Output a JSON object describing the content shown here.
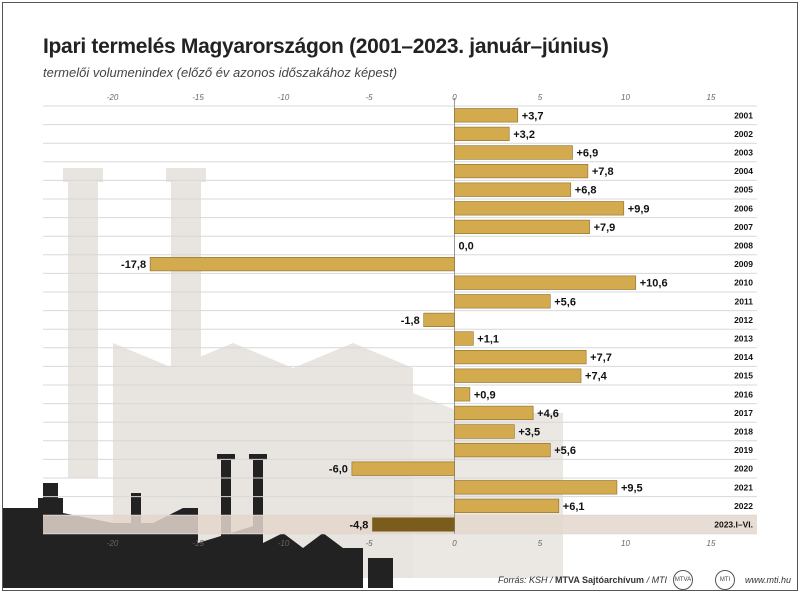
{
  "title": "Ipari termelés Magyarországon (2001–2023. január–június)",
  "subtitle": "termelői volumenindex (előző év azonos időszakához képest)",
  "chart_data": {
    "type": "bar",
    "orientation": "horizontal",
    "categories": [
      "2001",
      "2002",
      "2003",
      "2004",
      "2005",
      "2006",
      "2007",
      "2008",
      "2009",
      "2010",
      "2011",
      "2012",
      "2013",
      "2014",
      "2015",
      "2016",
      "2017",
      "2018",
      "2019",
      "2020",
      "2021",
      "2022",
      "2023.I–VI."
    ],
    "values": [
      3.7,
      3.2,
      6.9,
      7.8,
      6.8,
      9.9,
      7.9,
      0.0,
      -17.8,
      10.6,
      5.6,
      -1.8,
      1.1,
      7.7,
      7.4,
      0.9,
      4.6,
      3.5,
      5.6,
      -6.0,
      9.5,
      6.1,
      -4.8
    ],
    "value_labels": [
      "+3,7",
      "+3,2",
      "+6,9",
      "+7,8",
      "+6,8",
      "+9,9",
      "+7,9",
      "0,0",
      "-17,8",
      "+10,6",
      "+5,6",
      "-1,8",
      "+1,1",
      "+7,7",
      "+7,4",
      "+0,9",
      "+4,6",
      "+3,5",
      "+5,6",
      "-6,0",
      "+9,5",
      "+6,1",
      "-4,8"
    ],
    "xlim": [
      -24,
      18
    ],
    "ticks": [
      -20,
      -15,
      -10,
      -5,
      0,
      5,
      10,
      15
    ],
    "tick_labels": [
      "-20",
      "-15",
      "-10",
      "-5",
      "0",
      "5",
      "10",
      "15"
    ],
    "xlabel": "",
    "ylabel": "",
    "grid": true,
    "bar_color": "#d4aa4e",
    "highlight_color": "#7a5c1c"
  },
  "footer": {
    "source_prefix": "Forrás: KSH /",
    "source_bold": "MTVA Sajtóarchívum",
    "source_suffix": "/ MTI",
    "site": "www.mti.hu",
    "logo1": "MTVA",
    "logo2": "MTI"
  }
}
